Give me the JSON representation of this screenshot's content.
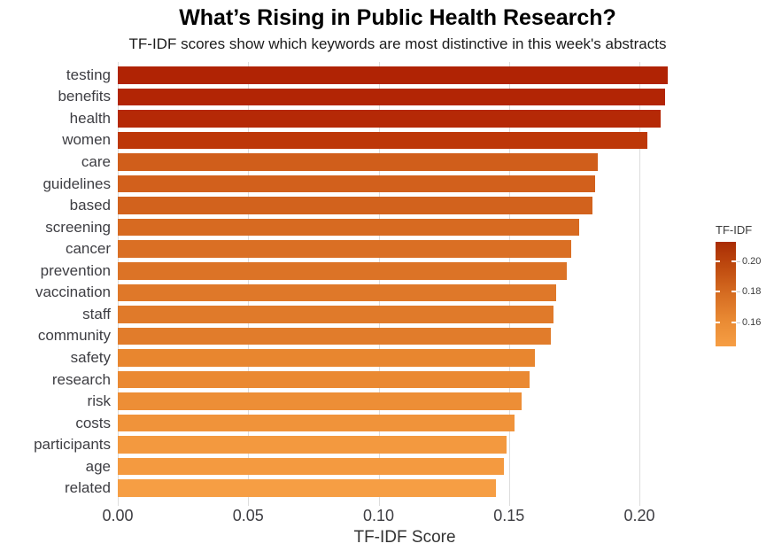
{
  "chart_data": {
    "type": "bar",
    "orientation": "horizontal",
    "title": "What’s Rising in Public Health Research?",
    "subtitle": "TF-IDF scores show which keywords are most distinctive in this week's abstracts",
    "xlabel": "TF-IDF Score",
    "ylabel": "",
    "grid": true,
    "xlim": [
      0,
      0.22
    ],
    "categories": [
      "testing",
      "benefits",
      "health",
      "women",
      "care",
      "guidelines",
      "based",
      "screening",
      "cancer",
      "prevention",
      "vaccination",
      "staff",
      "community",
      "safety",
      "research",
      "risk",
      "costs",
      "participants",
      "age",
      "related"
    ],
    "values": [
      0.211,
      0.21,
      0.208,
      0.203,
      0.184,
      0.183,
      0.182,
      0.177,
      0.174,
      0.172,
      0.168,
      0.167,
      0.166,
      0.16,
      0.158,
      0.155,
      0.152,
      0.149,
      0.148,
      0.145
    ],
    "bar_colors": [
      "#b02304",
      "#b22505",
      "#b52906",
      "#bd3708",
      "#d05e1b",
      "#d2601c",
      "#d2621d",
      "#d76a21",
      "#da6f24",
      "#dc7326",
      "#df7829",
      "#e07a2a",
      "#e17c2b",
      "#e8862f",
      "#ea8932",
      "#ed8e36",
      "#f0933a",
      "#f3993f",
      "#f49a40",
      "#f69e44"
    ],
    "x_ticks": [
      "0.00",
      "0.05",
      "0.10",
      "0.15",
      "0.20"
    ],
    "x_tick_values": [
      0,
      0.05,
      0.1,
      0.15,
      0.2
    ],
    "gridline_color": "#dddddd",
    "legend": {
      "title": "TF-IDF",
      "position": "right",
      "ticks": [
        "0.20",
        "0.18",
        "0.16"
      ],
      "tick_values": [
        0.2,
        0.18,
        0.16
      ],
      "domain_top": 0.2125,
      "domain_bottom": 0.1445,
      "gradient_stops": [
        "#a92c05",
        "#c04c10",
        "#d66d22",
        "#e98a33",
        "#f69e44"
      ]
    }
  }
}
